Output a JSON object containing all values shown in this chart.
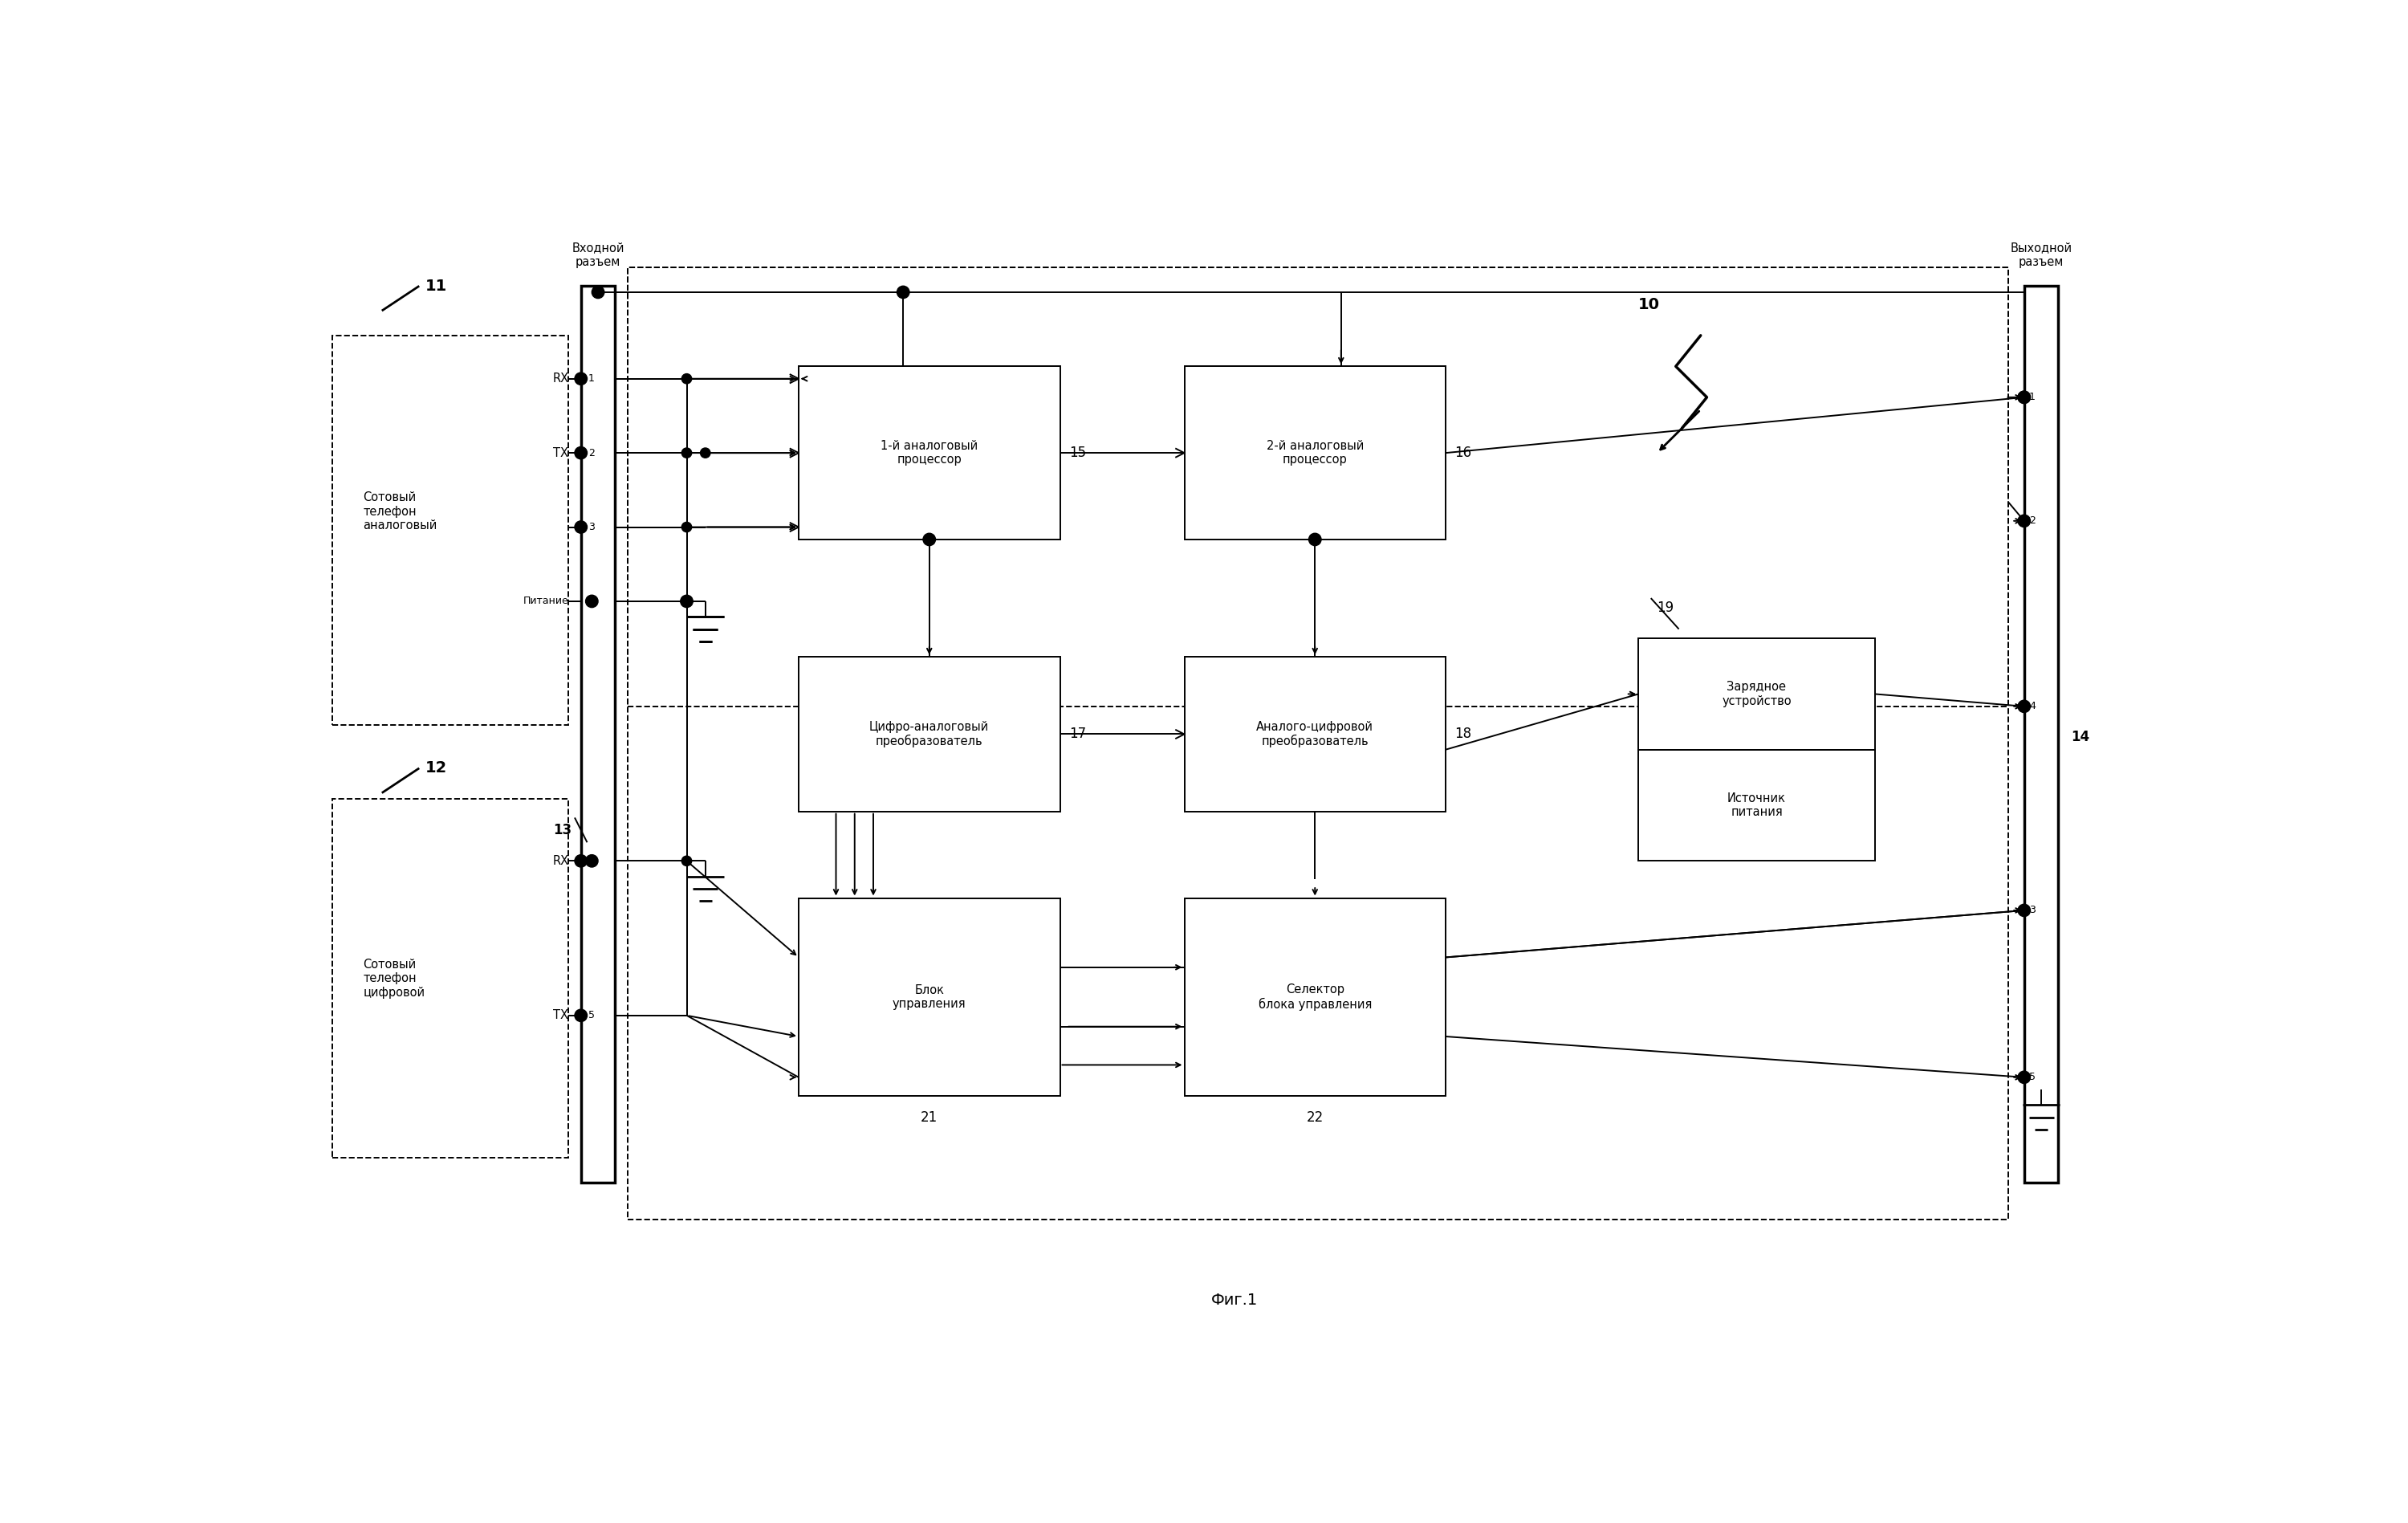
{
  "title": "Фиг.1",
  "bg_color": "#ffffff",
  "text_analog_phone": "Сотовый\nтелефон\nаналоговый",
  "text_digital_phone": "Сотовый\nтелефон\nцифровой",
  "text_input_connector": "Входной\nразъем",
  "text_output_connector": "Выходной\nразъем",
  "text_analog1": "1-й аналоговый\nпроцессор",
  "text_analog2": "2-й аналоговый\nпроцессор",
  "text_dac": "Цифро-аналоговый\nпреобразователь",
  "text_adc": "Аналого-цифровой\nпреобразователь",
  "text_ctrl": "Блок\nуправления",
  "text_selector": "Селектор\nблока управления",
  "text_charger": "Зарядное\nустройство",
  "text_power": "Источник\nпитания",
  "text_rx": "RX",
  "text_tx": "TX",
  "text_power_label": "Питание",
  "label_11": "11",
  "label_12": "12",
  "label_13": "13",
  "label_14": "14",
  "label_15": "15",
  "label_16": "16",
  "label_17": "17",
  "label_18": "18",
  "label_19": "19",
  "label_10": "10",
  "label_21": "21",
  "label_22": "22"
}
